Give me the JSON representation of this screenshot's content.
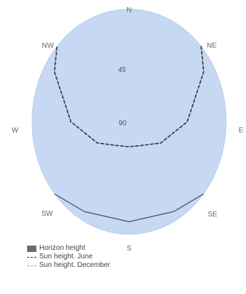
{
  "chart_data": {
    "type": "polar sun-path",
    "compass_labels": {
      "n": "N",
      "ne": "NE",
      "e": "E",
      "se": "SE",
      "s": "S",
      "sw": "SW",
      "w": "W",
      "nw": "NW"
    },
    "ring_labels": [
      "45",
      "90"
    ],
    "series": [
      {
        "name": "Horizon height",
        "style": "filled swatch",
        "color": "#6a6a6a"
      },
      {
        "name": "Sun height. June",
        "style": "dashed",
        "color": "#333333",
        "points": [
          {
            "azimuth": 48,
            "altitude": 0
          },
          {
            "azimuth": 60,
            "altitude": 10
          },
          {
            "azimuth": 90,
            "altitude": 36
          },
          {
            "azimuth": 120,
            "altitude": 56
          },
          {
            "azimuth": 150,
            "altitude": 68
          },
          {
            "azimuth": 180,
            "altitude": 70
          },
          {
            "azimuth": 210,
            "altitude": 68
          },
          {
            "azimuth": 240,
            "altitude": 56
          },
          {
            "azimuth": 270,
            "altitude": 36
          },
          {
            "azimuth": 300,
            "altitude": 10
          },
          {
            "azimuth": 312,
            "altitude": 0
          }
        ]
      },
      {
        "name": "Sun height. December",
        "style": "solid",
        "color": "#4d5a73",
        "points": [
          {
            "azimuth": 130,
            "altitude": 0
          },
          {
            "azimuth": 150,
            "altitude": 7
          },
          {
            "azimuth": 180,
            "altitude": 10
          },
          {
            "azimuth": 210,
            "altitude": 7
          },
          {
            "azimuth": 230,
            "altitude": 0
          }
        ]
      }
    ],
    "colors": {
      "sky": "#c7d8f2",
      "sky_edge": "#b8cce9"
    }
  }
}
